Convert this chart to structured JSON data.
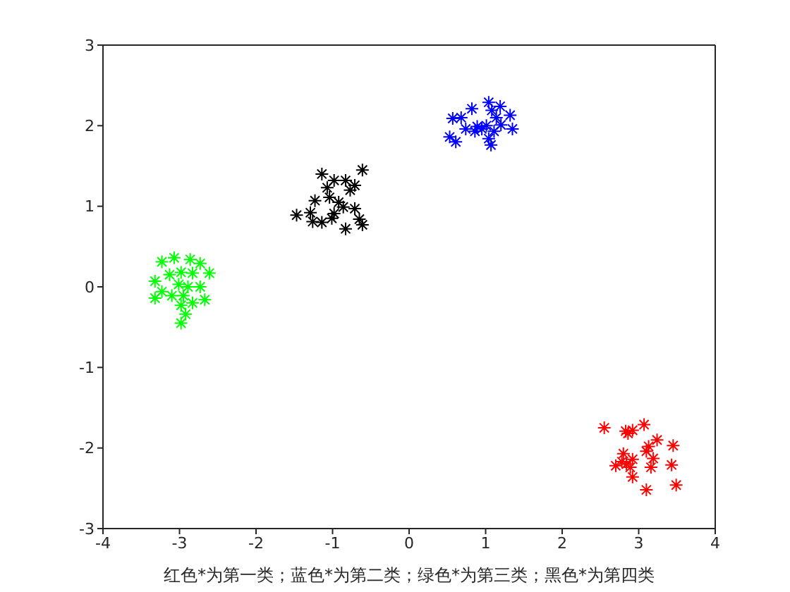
{
  "chart_data": {
    "type": "scatter",
    "xlabel": "红色*为第一类；蓝色*为第二类；绿色*为第三类；黑色*为第四类",
    "xlim": [
      -4,
      4
    ],
    "ylim": [
      -3,
      3
    ],
    "xticks": [
      -4,
      -3,
      -2,
      -1,
      0,
      1,
      2,
      3,
      4
    ],
    "yticks": [
      -3,
      -2,
      -1,
      0,
      1,
      2,
      3
    ],
    "marker": "cross",
    "series": [
      {
        "color": "#ff0000",
        "x": [
          2.55,
          2.83,
          2.92,
          3.07,
          2.86,
          3.13,
          3.24,
          3.45,
          3.1,
          3.19,
          2.8,
          2.92,
          2.7,
          2.84,
          2.89,
          3.16,
          3.43,
          2.92,
          3.49,
          3.1,
          2.78
        ],
        "values": [
          -1.75,
          -1.79,
          -1.78,
          -1.71,
          -1.82,
          -1.98,
          -1.9,
          -1.97,
          -2.04,
          -2.13,
          -2.07,
          -2.14,
          -2.22,
          -2.2,
          -2.24,
          -2.24,
          -2.21,
          -2.36,
          -2.46,
          -2.52,
          -2.17
        ]
      },
      {
        "color": "#0000ff",
        "x": [
          0.57,
          0.68,
          0.82,
          1.04,
          1.19,
          1.32,
          1.08,
          1.14,
          0.74,
          0.86,
          0.95,
          1.01,
          1.2,
          1.35,
          1.11,
          0.53,
          0.61,
          1.07,
          1.04,
          0.89
        ],
        "values": [
          2.09,
          2.1,
          2.21,
          2.29,
          2.24,
          2.13,
          2.19,
          2.1,
          1.96,
          1.93,
          1.96,
          2.0,
          2.01,
          1.96,
          1.93,
          1.86,
          1.8,
          1.76,
          1.84,
          1.99
        ]
      },
      {
        "color": "#00ff00",
        "x": [
          -3.07,
          -3.23,
          -2.86,
          -2.73,
          -2.61,
          -3.32,
          -3.13,
          -2.98,
          -2.83,
          -3.01,
          -2.89,
          -2.73,
          -3.23,
          -3.32,
          -3.1,
          -2.95,
          -2.67,
          -2.83,
          -2.98,
          -2.92,
          -2.98
        ],
        "values": [
          0.36,
          0.31,
          0.34,
          0.29,
          0.17,
          0.07,
          0.15,
          0.18,
          0.17,
          0.03,
          0.0,
          0.0,
          -0.06,
          -0.14,
          -0.11,
          -0.11,
          -0.16,
          -0.2,
          -0.23,
          -0.34,
          -0.45
        ]
      },
      {
        "color": "#000000",
        "x": [
          -1.14,
          -0.61,
          -0.98,
          -0.83,
          -0.71,
          -0.77,
          -1.07,
          -1.04,
          -1.23,
          -0.92,
          -0.86,
          -0.71,
          -1.47,
          -1.29,
          -1.26,
          -1.14,
          -1.01,
          -0.65,
          -0.83,
          -0.61,
          -0.98
        ],
        "values": [
          1.4,
          1.45,
          1.32,
          1.32,
          1.26,
          1.2,
          1.23,
          1.11,
          1.07,
          1.05,
          0.99,
          0.97,
          0.89,
          0.92,
          0.81,
          0.8,
          0.85,
          0.84,
          0.72,
          0.77,
          0.91
        ]
      }
    ]
  }
}
